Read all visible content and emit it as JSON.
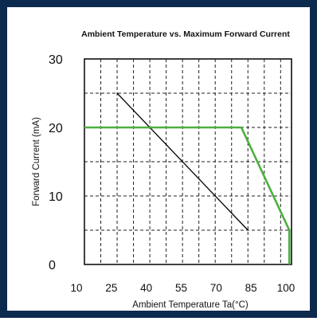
{
  "chart_data": {
    "type": "line",
    "title": "Ambient Temperature vs. Maximum Forward Current",
    "xlabel": "Ambient Temperature Ta(°C)",
    "ylabel": "Forward Current (mA)",
    "x_ticks": [
      "10",
      "25",
      "40",
      "55",
      "70",
      "85",
      "100"
    ],
    "y_ticks": [
      "0",
      "10",
      "20",
      "30"
    ],
    "xlim": [
      10,
      105
    ],
    "ylim": [
      0,
      30
    ],
    "grid": true,
    "grid_style": "dashed",
    "series": [
      {
        "color": "#000000",
        "x": [
          25,
          85
        ],
        "y": [
          25,
          5
        ]
      },
      {
        "color": "#4caf3f",
        "x": [
          10,
          82,
          104,
          104
        ],
        "y": [
          20,
          20,
          5,
          0
        ]
      }
    ]
  }
}
